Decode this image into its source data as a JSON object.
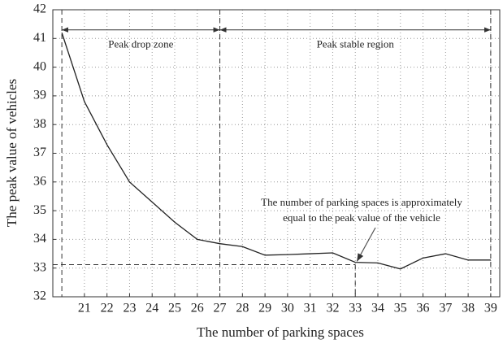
{
  "chart_data": {
    "type": "line",
    "x_label": "The number of parking spaces",
    "y_label": "The peak value of vehicles",
    "x": [
      20,
      21,
      22,
      23,
      24,
      25,
      26,
      27,
      28,
      29,
      30,
      31,
      32,
      33,
      34,
      35,
      36,
      37,
      38,
      39
    ],
    "values": [
      41.2,
      38.8,
      37.3,
      36.0,
      35.3,
      34.6,
      34.0,
      33.85,
      33.75,
      33.45,
      33.47,
      33.5,
      33.53,
      33.2,
      33.18,
      32.97,
      33.35,
      33.5,
      33.28,
      33.28
    ],
    "color": "#222222",
    "xlim": [
      19.6,
      39.4
    ],
    "xticks": [
      21,
      22,
      23,
      24,
      25,
      26,
      27,
      28,
      29,
      30,
      31,
      32,
      33,
      34,
      35,
      36,
      37,
      38,
      39
    ],
    "ylim": [
      32,
      42
    ],
    "yticks": [
      32,
      33,
      34,
      35,
      36,
      37,
      38,
      39,
      40,
      41,
      42
    ],
    "grid": true,
    "zone_lines": [
      20,
      27,
      39
    ],
    "zone_arrow_y": 41.3,
    "zones": [
      "Peak drop zone",
      "Peak stable region"
    ],
    "equal_line": {
      "y": 33.12,
      "x": 33
    },
    "annotation": [
      "The number of parking spaces is approximately",
      "equal to the peak value of the vehicle"
    ]
  }
}
